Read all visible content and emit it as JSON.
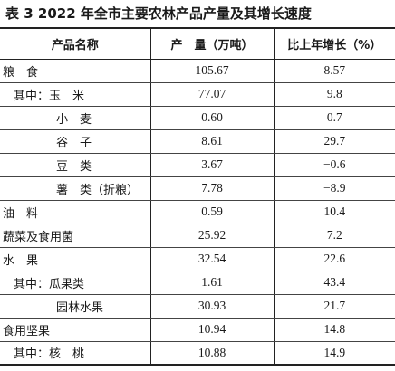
{
  "title": "表 3   2022 年全市主要农林产品产量及其增长速度",
  "headers": {
    "name": "产品名称",
    "output": "产　量（万吨）",
    "growth": "比上年增长（%）"
  },
  "rows": [
    {
      "name": "粮　食",
      "level": 0,
      "output": "105.67",
      "growth": "8.57"
    },
    {
      "name": "其中：玉　米",
      "level": 1,
      "output": "77.07",
      "growth": "9.8"
    },
    {
      "name": "小　麦",
      "level": 2,
      "output": "0.60",
      "growth": "0.7"
    },
    {
      "name": "谷　子",
      "level": 2,
      "output": "8.61",
      "growth": "29.7"
    },
    {
      "name": "豆　类",
      "level": 2,
      "output": "3.67",
      "growth": "−0.6"
    },
    {
      "name": "薯　类（折粮）",
      "level": 2,
      "output": "7.78",
      "growth": "−8.9"
    },
    {
      "name": "油　料",
      "level": 0,
      "output": "0.59",
      "growth": "10.4"
    },
    {
      "name": "蔬菜及食用菌",
      "level": 0,
      "output": "25.92",
      "growth": "7.2"
    },
    {
      "name": "水　果",
      "level": 0,
      "output": "32.54",
      "growth": "22.6"
    },
    {
      "name": "其中：瓜果类",
      "level": 1,
      "output": "1.61",
      "growth": "43.4"
    },
    {
      "name": "园林水果",
      "level": 2,
      "output": "30.93",
      "growth": "21.7"
    },
    {
      "name": "食用坚果",
      "level": 0,
      "output": "10.94",
      "growth": "14.8"
    },
    {
      "name": "其中：核　桃",
      "level": 1,
      "output": "10.88",
      "growth": "14.9"
    }
  ]
}
